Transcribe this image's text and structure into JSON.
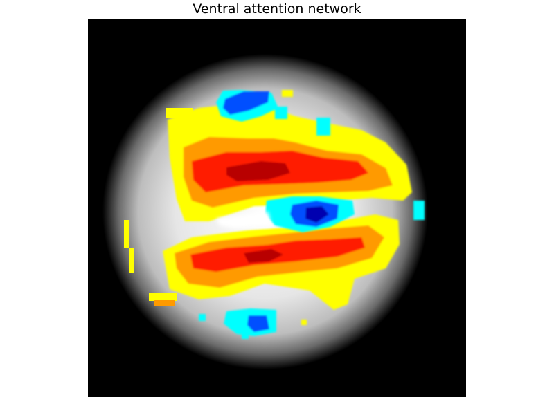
{
  "figure": {
    "title": "Ventral attention network"
  },
  "image": {
    "background": "grayscale brain slice (axial) on black",
    "overlay_colormap": "jet",
    "colors": {
      "background": "#000000",
      "deactivation_dark": "#0000b0",
      "deactivation": "#0050ff",
      "deactivation_light": "#00ffff",
      "activation_light": "#ffff00",
      "activation": "#ff9a00",
      "activation_strong": "#ff1a00",
      "activation_peak": "#b80000"
    }
  }
}
